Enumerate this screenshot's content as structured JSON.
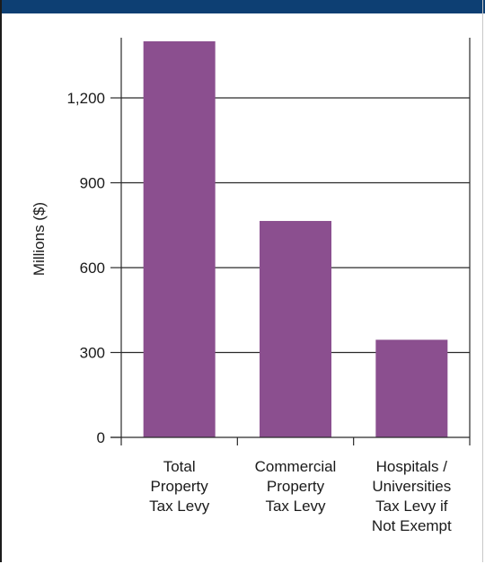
{
  "colors": {
    "header": "#0d3f73",
    "bar": "#8b4f8f",
    "grid": "#2a2a2a"
  },
  "chart_data": {
    "type": "bar",
    "title": "",
    "xlabel": "",
    "ylabel": "Millions ($)",
    "ylim": [
      0,
      1400
    ],
    "yticks": [
      0,
      300,
      600,
      900,
      1200
    ],
    "ytick_labels": [
      "0",
      "300",
      "600",
      "900",
      "1,200"
    ],
    "grid": true,
    "categories": [
      [
        "Total",
        "Property",
        "Tax Levy"
      ],
      [
        "Commercial",
        "Property",
        "Tax Levy"
      ],
      [
        "Hospitals /",
        "Universities",
        "Tax Levy if",
        "Not Exempt"
      ]
    ],
    "values": [
      1400,
      765,
      345
    ]
  }
}
